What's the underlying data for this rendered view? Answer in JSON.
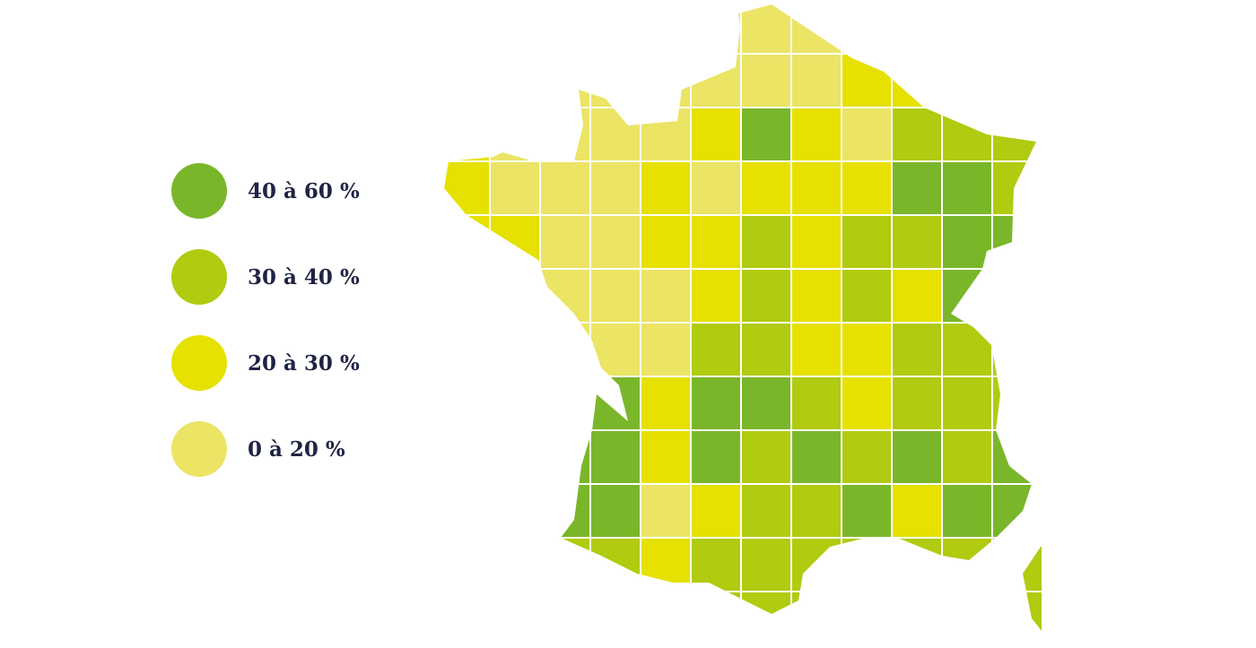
{
  "legend": [
    {
      "label": "40 à 60 %",
      "color": "#7ab62a"
    },
    {
      "label": "30 à 40 %",
      "color": "#b0cb10"
    },
    {
      "label": "20 à 30 %",
      "color": "#e6e100"
    },
    {
      "label": "0 à 20 %",
      "color": "#ebe465"
    }
  ]
}
